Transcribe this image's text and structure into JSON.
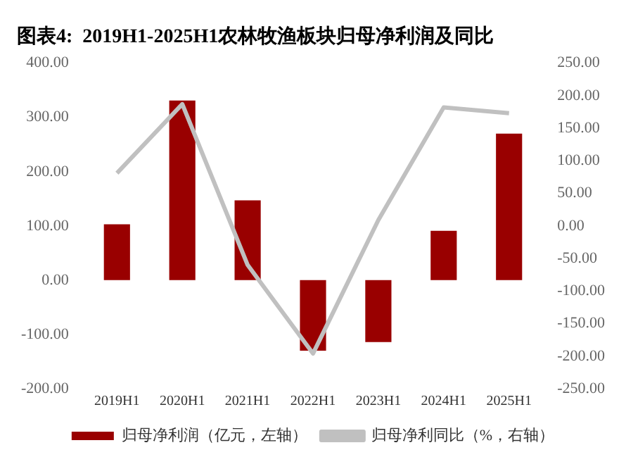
{
  "chart_data": {
    "type": "bar",
    "title": "图表4:  2019H1-2025H1农林牧渔板块归母净利润及同比",
    "categories": [
      "2019H1",
      "2020H1",
      "2021H1",
      "2022H1",
      "2023H1",
      "2024H1",
      "2025H1"
    ],
    "series": [
      {
        "name": "归母净利润（亿元，左轴）",
        "color": "#990000",
        "values": [
          103,
          331,
          147,
          -130,
          -114,
          91,
          270
        ]
      },
      {
        "name": "归母净利同比（%，右轴）",
        "type": "line",
        "axis": "y2",
        "color": "#c0c0c0",
        "values": [
          81,
          187,
          -60,
          -196,
          9,
          182,
          173
        ]
      }
    ],
    "ylim": [
      -200,
      400
    ],
    "yticks": [
      {
        "value": -200,
        "label": "-200.00"
      },
      {
        "value": -100,
        "label": "-100.00"
      },
      {
        "value": 0,
        "label": "0.00"
      },
      {
        "value": 100,
        "label": "100.00"
      },
      {
        "value": 200,
        "label": "200.00"
      },
      {
        "value": 300,
        "label": "300.00"
      },
      {
        "value": 400,
        "label": "400.00"
      }
    ],
    "y2lim": [
      -250,
      250
    ],
    "y2ticks": [
      {
        "value": -250,
        "label": "-250.00"
      },
      {
        "value": -200,
        "label": "-200.00"
      },
      {
        "value": -150,
        "label": "-150.00"
      },
      {
        "value": -100,
        "label": "-100.00"
      },
      {
        "value": -50,
        "label": "-50.00"
      },
      {
        "value": 0,
        "label": "0.00"
      },
      {
        "value": 50,
        "label": "50.00"
      },
      {
        "value": 100,
        "label": "100.00"
      },
      {
        "value": 150,
        "label": "150.00"
      },
      {
        "value": 200,
        "label": "200.00"
      },
      {
        "value": 250,
        "label": "250.00"
      }
    ],
    "grid": false,
    "legend": "bottom",
    "marker": "none"
  }
}
